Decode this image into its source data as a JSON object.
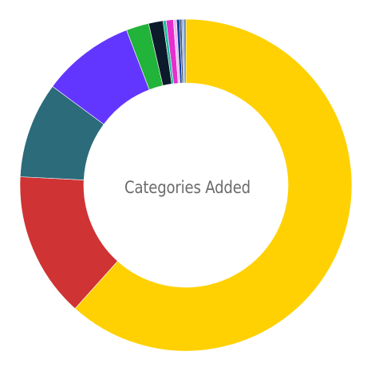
{
  "chart_data": {
    "type": "pie",
    "title": "Categories Added",
    "legend": "none",
    "slices": [
      {
        "value": 61.4,
        "color": "#FFD102"
      },
      {
        "value": 14.1,
        "color": "#CF3333"
      },
      {
        "value": 9.3,
        "color": "#2B6B7A"
      },
      {
        "value": 9.0,
        "color": "#6236FF"
      },
      {
        "value": 2.2,
        "color": "#22B33A"
      },
      {
        "value": 1.4,
        "color": "#0C1A2C"
      },
      {
        "value": 0.3,
        "color": "#1DBF9A"
      },
      {
        "value": 0.7,
        "color": "#E52ECF"
      },
      {
        "value": 0.3,
        "color": "#F2B7E8"
      },
      {
        "value": 0.3,
        "color": "#0F3F9E"
      },
      {
        "value": 0.2,
        "color": "#3D4D66"
      },
      {
        "value": 0.2,
        "color": "#8FB2DE"
      },
      {
        "value": 0.2,
        "color": "#5A7BA6"
      }
    ]
  }
}
